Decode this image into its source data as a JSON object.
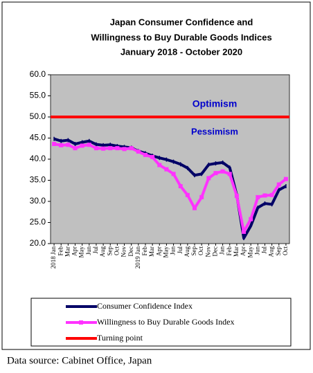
{
  "chart_data": {
    "type": "line",
    "title": [
      "Japan Consumer Confidence and",
      "Willingness to Buy Durable Goods Indices",
      "January 2018 - October 2020"
    ],
    "categories": [
      "2018 Jan",
      "Feb",
      "Mar",
      "Apr",
      "May",
      "Jun",
      "Jul",
      "Aug",
      "Sep",
      "Oct",
      "Nov",
      "Dec",
      "2019 Jan",
      "Feb",
      "Mar",
      "Apr",
      "May",
      "Jun",
      "Jul",
      "Aug",
      "Sep",
      "Oct",
      "Nov",
      "Dec",
      "Jan",
      "Feb",
      "Mar",
      "Apr",
      "May",
      "Jun",
      "Jul",
      "Aug",
      "Sep",
      "Oct"
    ],
    "series": [
      {
        "name": "Consumer Confidence Index",
        "color": "#000066",
        "values": [
          44.8,
          44.3,
          44.5,
          43.6,
          44.0,
          44.3,
          43.5,
          43.3,
          43.4,
          43.1,
          42.9,
          42.7,
          41.9,
          41.4,
          40.8,
          40.3,
          39.9,
          39.4,
          38.8,
          37.9,
          36.2,
          36.5,
          38.7,
          39.0,
          39.2,
          38.0,
          31.5,
          21.3,
          24.2,
          28.5,
          29.5,
          29.3,
          32.7,
          33.6
        ]
      },
      {
        "name": "Willingness to Buy Durable Goods Index",
        "color": "#ff33ff",
        "values": [
          43.6,
          43.3,
          43.4,
          42.6,
          43.2,
          43.4,
          42.6,
          42.5,
          42.6,
          42.6,
          42.4,
          42.6,
          41.8,
          41.0,
          40.5,
          38.6,
          37.6,
          36.5,
          33.6,
          31.5,
          28.4,
          31.0,
          35.5,
          36.7,
          37.1,
          36.5,
          31.3,
          22.8,
          25.8,
          31.0,
          31.4,
          31.5,
          34.0,
          35.3
        ]
      }
    ],
    "reference_line": {
      "name": "Turning point",
      "value": 50,
      "color": "#ff0000"
    },
    "annotations": [
      "Optimism",
      "Pessimism"
    ],
    "ylim": [
      20,
      60
    ],
    "yticks": [
      {
        "value": 20,
        "label": "20.0"
      },
      {
        "value": 25,
        "label": "25.0"
      },
      {
        "value": 30,
        "label": "30.0"
      },
      {
        "value": 35,
        "label": "35.0"
      },
      {
        "value": 40,
        "label": "40.0"
      },
      {
        "value": 45,
        "label": "45.0"
      },
      {
        "value": 50,
        "label": "50.0"
      },
      {
        "value": 55,
        "label": "55.0"
      },
      {
        "value": 60,
        "label": "60.0"
      }
    ],
    "source": "Data source: Cabinet Office, Japan"
  }
}
